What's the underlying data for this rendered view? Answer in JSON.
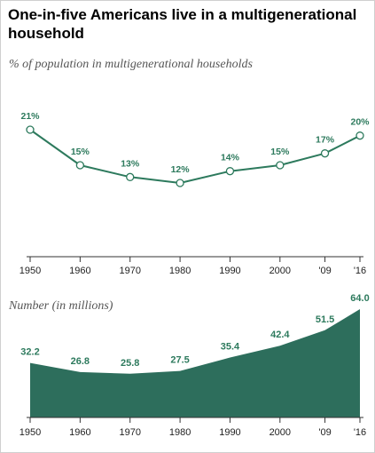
{
  "header": {
    "title": "One-in-five Americans live in a multigenerational household"
  },
  "chart_data": [
    {
      "type": "line",
      "subtitle": "% of population in multigenerational households",
      "x": [
        1950,
        1960,
        1970,
        1980,
        1990,
        2000,
        2009,
        2016
      ],
      "tick_labels": [
        "1950",
        "1960",
        "1970",
        "1980",
        "1990",
        "2000",
        "'09",
        "'16"
      ],
      "values": [
        21,
        15,
        13,
        12,
        14,
        15,
        17,
        20
      ],
      "labels": [
        "21%",
        "15%",
        "13%",
        "12%",
        "14%",
        "15%",
        "17%",
        "20%"
      ],
      "series_color": "#2d7a5d",
      "grid": false
    },
    {
      "type": "area",
      "subtitle": "Number (in millions)",
      "x": [
        1950,
        1960,
        1970,
        1980,
        1990,
        2000,
        2009,
        2016
      ],
      "tick_labels": [
        "1950",
        "1960",
        "1970",
        "1980",
        "1990",
        "2000",
        "'09",
        "'16"
      ],
      "values": [
        32.2,
        26.8,
        25.8,
        27.5,
        35.4,
        42.4,
        51.5,
        64.0
      ],
      "labels": [
        "32.2",
        "26.8",
        "25.8",
        "27.5",
        "35.4",
        "42.4",
        "51.5",
        "64.0"
      ],
      "series_color": "#2d6e5c",
      "grid": false
    }
  ]
}
